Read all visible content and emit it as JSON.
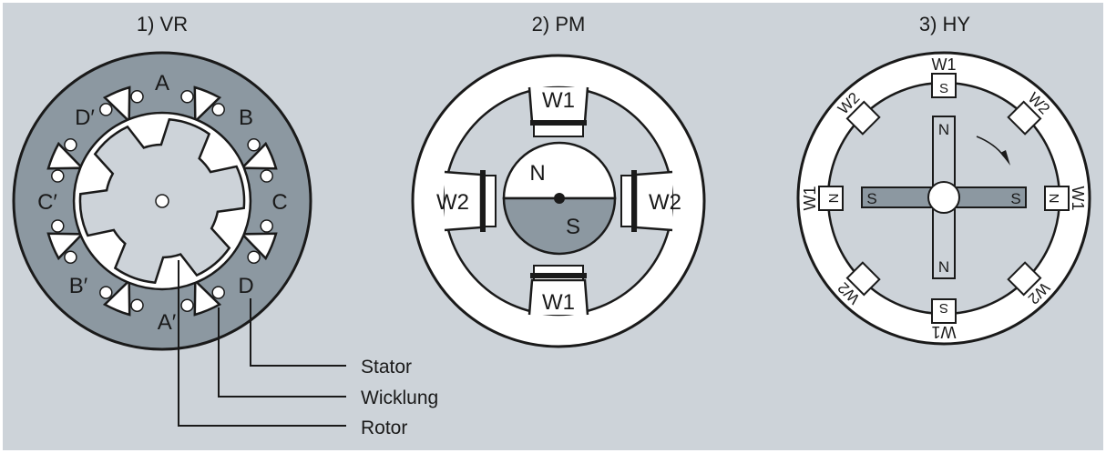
{
  "colors": {
    "background": "#cdd3d9",
    "stator": "#8c98a1",
    "white": "#ffffff",
    "stroke": "#1a1a1a"
  },
  "titles": {
    "vr": "1) VR",
    "pm": "2) PM",
    "hy": "3) HY"
  },
  "vr": {
    "poles": {
      "a": "A",
      "b": "B",
      "c": "C",
      "d": "D",
      "a_prime": "A′",
      "b_prime": "B′",
      "c_prime": "C′",
      "d_prime": "D′"
    },
    "legend": {
      "stator": "Stator",
      "winding": "Wicklung",
      "rotor": "Rotor"
    }
  },
  "pm": {
    "winding_1": "W1",
    "winding_2": "W2",
    "north": "N",
    "south": "S"
  },
  "hy": {
    "winding_1": "W1",
    "winding_2": "W2",
    "north": "N",
    "south": "S"
  }
}
